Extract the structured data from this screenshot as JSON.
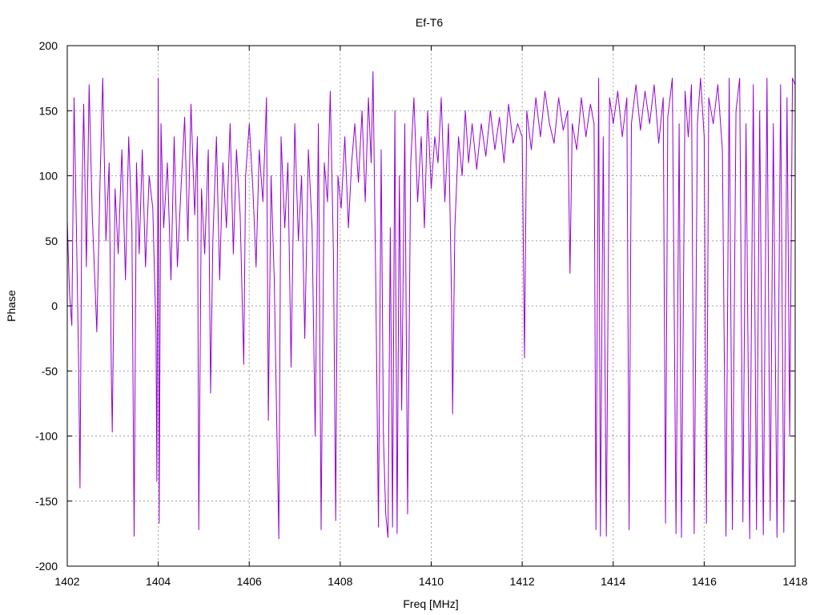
{
  "chart_data": {
    "type": "line",
    "title": "Ef-T6",
    "xlabel": "Freq [MHz]",
    "ylabel": "Phase",
    "xlim": [
      1402,
      1418
    ],
    "ylim": [
      -200,
      200
    ],
    "x_ticks": [
      1402,
      1404,
      1406,
      1408,
      1410,
      1412,
      1414,
      1416,
      1418
    ],
    "y_ticks": [
      200,
      150,
      100,
      50,
      0,
      -50,
      -100,
      -150,
      -200
    ],
    "grid": true,
    "series": [
      {
        "color": "#9400d3",
        "points": [
          [
            1402.0,
            65
          ],
          [
            1402.05,
            10
          ],
          [
            1402.1,
            -15
          ],
          [
            1402.15,
            160
          ],
          [
            1402.2,
            60
          ],
          [
            1402.25,
            -45
          ],
          [
            1402.28,
            -140
          ],
          [
            1402.32,
            80
          ],
          [
            1402.36,
            155
          ],
          [
            1402.42,
            30
          ],
          [
            1402.48,
            170
          ],
          [
            1402.55,
            70
          ],
          [
            1402.6,
            25
          ],
          [
            1402.65,
            -20
          ],
          [
            1402.72,
            95
          ],
          [
            1402.78,
            175
          ],
          [
            1402.85,
            50
          ],
          [
            1402.92,
            110
          ],
          [
            1402.97,
            -55
          ],
          [
            1402.99,
            -97
          ],
          [
            1403.05,
            90
          ],
          [
            1403.12,
            40
          ],
          [
            1403.2,
            120
          ],
          [
            1403.28,
            20
          ],
          [
            1403.35,
            130
          ],
          [
            1403.42,
            60
          ],
          [
            1403.47,
            -177
          ],
          [
            1403.52,
            110
          ],
          [
            1403.58,
            40
          ],
          [
            1403.65,
            120
          ],
          [
            1403.72,
            30
          ],
          [
            1403.8,
            100
          ],
          [
            1403.88,
            75
          ],
          [
            1403.95,
            -20
          ],
          [
            1403.97,
            -135
          ],
          [
            1404.0,
            175
          ],
          [
            1404.02,
            -167
          ],
          [
            1404.06,
            140
          ],
          [
            1404.12,
            60
          ],
          [
            1404.2,
            110
          ],
          [
            1404.28,
            20
          ],
          [
            1404.35,
            130
          ],
          [
            1404.42,
            30
          ],
          [
            1404.5,
            90
          ],
          [
            1404.58,
            145
          ],
          [
            1404.65,
            50
          ],
          [
            1404.72,
            155
          ],
          [
            1404.8,
            70
          ],
          [
            1404.86,
            130
          ],
          [
            1404.89,
            -172
          ],
          [
            1404.95,
            90
          ],
          [
            1405.02,
            40
          ],
          [
            1405.1,
            120
          ],
          [
            1405.15,
            -67
          ],
          [
            1405.2,
            50
          ],
          [
            1405.28,
            130
          ],
          [
            1405.35,
            20
          ],
          [
            1405.42,
            110
          ],
          [
            1405.5,
            60
          ],
          [
            1405.58,
            140
          ],
          [
            1405.65,
            40
          ],
          [
            1405.72,
            120
          ],
          [
            1405.8,
            70
          ],
          [
            1405.88,
            -45
          ],
          [
            1405.92,
            100
          ],
          [
            1406.0,
            140
          ],
          [
            1406.08,
            90
          ],
          [
            1406.15,
            30
          ],
          [
            1406.22,
            120
          ],
          [
            1406.3,
            80
          ],
          [
            1406.38,
            160
          ],
          [
            1406.42,
            -88
          ],
          [
            1406.48,
            100
          ],
          [
            1406.55,
            20
          ],
          [
            1406.6,
            -80
          ],
          [
            1406.65,
            -179
          ],
          [
            1406.7,
            130
          ],
          [
            1406.78,
            60
          ],
          [
            1406.85,
            110
          ],
          [
            1406.92,
            -47
          ],
          [
            1407.0,
            140
          ],
          [
            1407.08,
            50
          ],
          [
            1407.15,
            100
          ],
          [
            1407.22,
            -25
          ],
          [
            1407.3,
            120
          ],
          [
            1407.38,
            60
          ],
          [
            1407.45,
            -100
          ],
          [
            1407.52,
            140
          ],
          [
            1407.58,
            -172
          ],
          [
            1407.65,
            110
          ],
          [
            1407.72,
            80
          ],
          [
            1407.78,
            165
          ],
          [
            1407.85,
            40
          ],
          [
            1407.9,
            -165
          ],
          [
            1407.95,
            100
          ],
          [
            1408.02,
            75
          ],
          [
            1408.1,
            130
          ],
          [
            1408.18,
            60
          ],
          [
            1408.25,
            110
          ],
          [
            1408.32,
            140
          ],
          [
            1408.4,
            95
          ],
          [
            1408.48,
            150
          ],
          [
            1408.55,
            80
          ],
          [
            1408.62,
            160
          ],
          [
            1408.68,
            110
          ],
          [
            1408.72,
            180
          ],
          [
            1408.78,
            20
          ],
          [
            1408.84,
            -170
          ],
          [
            1408.9,
            120
          ],
          [
            1408.95,
            -100
          ],
          [
            1409.0,
            -160
          ],
          [
            1409.05,
            -178
          ],
          [
            1409.1,
            60
          ],
          [
            1409.15,
            -170
          ],
          [
            1409.2,
            150
          ],
          [
            1409.25,
            -175
          ],
          [
            1409.3,
            100
          ],
          [
            1409.35,
            -80
          ],
          [
            1409.42,
            140
          ],
          [
            1409.48,
            -160
          ],
          [
            1409.55,
            110
          ],
          [
            1409.62,
            160
          ],
          [
            1409.7,
            80
          ],
          [
            1409.78,
            130
          ],
          [
            1409.85,
            60
          ],
          [
            1409.92,
            150
          ],
          [
            1410.0,
            90
          ],
          [
            1410.08,
            130
          ],
          [
            1410.15,
            110
          ],
          [
            1410.22,
            160
          ],
          [
            1410.3,
            80
          ],
          [
            1410.38,
            140
          ],
          [
            1410.45,
            -2
          ],
          [
            1410.47,
            -83
          ],
          [
            1410.52,
            60
          ],
          [
            1410.6,
            130
          ],
          [
            1410.68,
            100
          ],
          [
            1410.75,
            150
          ],
          [
            1410.82,
            110
          ],
          [
            1410.9,
            140
          ],
          [
            1411.0,
            105
          ],
          [
            1411.1,
            140
          ],
          [
            1411.2,
            115
          ],
          [
            1411.3,
            150
          ],
          [
            1411.4,
            120
          ],
          [
            1411.5,
            145
          ],
          [
            1411.6,
            110
          ],
          [
            1411.7,
            155
          ],
          [
            1411.8,
            125
          ],
          [
            1411.9,
            140
          ],
          [
            1412.0,
            130
          ],
          [
            1412.05,
            -40
          ],
          [
            1412.1,
            150
          ],
          [
            1412.2,
            120
          ],
          [
            1412.3,
            160
          ],
          [
            1412.4,
            130
          ],
          [
            1412.5,
            165
          ],
          [
            1412.6,
            140
          ],
          [
            1412.7,
            125
          ],
          [
            1412.8,
            160
          ],
          [
            1412.9,
            135
          ],
          [
            1413.0,
            150
          ],
          [
            1413.05,
            25
          ],
          [
            1413.1,
            140
          ],
          [
            1413.2,
            120
          ],
          [
            1413.3,
            160
          ],
          [
            1413.4,
            130
          ],
          [
            1413.5,
            155
          ],
          [
            1413.58,
            140
          ],
          [
            1413.62,
            -172
          ],
          [
            1413.68,
            175
          ],
          [
            1413.72,
            -177
          ],
          [
            1413.78,
            130
          ],
          [
            1413.85,
            -177
          ],
          [
            1413.92,
            160
          ],
          [
            1414.0,
            140
          ],
          [
            1414.1,
            165
          ],
          [
            1414.2,
            130
          ],
          [
            1414.3,
            160
          ],
          [
            1414.35,
            -172
          ],
          [
            1414.4,
            140
          ],
          [
            1414.5,
            170
          ],
          [
            1414.6,
            135
          ],
          [
            1414.7,
            165
          ],
          [
            1414.8,
            140
          ],
          [
            1414.9,
            170
          ],
          [
            1415.0,
            125
          ],
          [
            1415.1,
            160
          ],
          [
            1415.15,
            -167
          ],
          [
            1415.2,
            145
          ],
          [
            1415.3,
            175
          ],
          [
            1415.38,
            -175
          ],
          [
            1415.45,
            140
          ],
          [
            1415.5,
            -178
          ],
          [
            1415.58,
            165
          ],
          [
            1415.65,
            130
          ],
          [
            1415.72,
            170
          ],
          [
            1415.78,
            -175
          ],
          [
            1415.85,
            140
          ],
          [
            1415.92,
            175
          ],
          [
            1416.0,
            130
          ],
          [
            1416.05,
            -167
          ],
          [
            1416.1,
            160
          ],
          [
            1416.2,
            140
          ],
          [
            1416.3,
            170
          ],
          [
            1416.4,
            120
          ],
          [
            1416.48,
            -177
          ],
          [
            1416.55,
            175
          ],
          [
            1416.62,
            -172
          ],
          [
            1416.7,
            150
          ],
          [
            1416.78,
            175
          ],
          [
            1416.85,
            -166
          ],
          [
            1416.92,
            140
          ],
          [
            1417.0,
            -179
          ],
          [
            1417.08,
            170
          ],
          [
            1417.15,
            -172
          ],
          [
            1417.22,
            150
          ],
          [
            1417.3,
            -176
          ],
          [
            1417.38,
            175
          ],
          [
            1417.45,
            -165
          ],
          [
            1417.52,
            140
          ],
          [
            1417.6,
            -178
          ],
          [
            1417.68,
            170
          ],
          [
            1417.75,
            -174
          ],
          [
            1417.82,
            160
          ],
          [
            1417.88,
            -100
          ],
          [
            1417.94,
            175
          ],
          [
            1418.0,
            170
          ]
        ]
      }
    ]
  }
}
